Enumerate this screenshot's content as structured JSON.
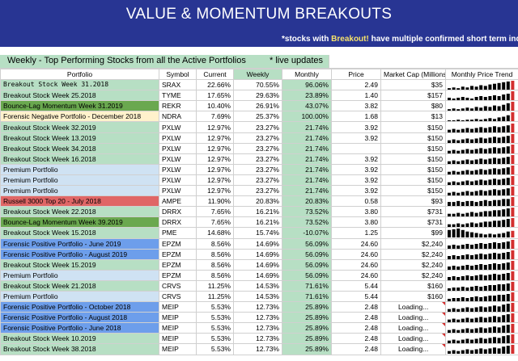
{
  "banner": {
    "title": "VALUE & MOMENTUM BREAKOUTS",
    "note_prefix": "*stocks with ",
    "note_highlight": "Breakout!",
    "note_suffix": " have multiple confirmed short term indicators fo"
  },
  "table_title": {
    "text": "Weekly - Top Performing Stocks from all the Active Portfolios",
    "live": "* live updates"
  },
  "columns": [
    "Portfolio",
    "Symbol",
    "Current",
    "Weekly",
    "Monthly",
    "Price",
    "Market Cap (Millions)",
    "Monthly Price Trend"
  ],
  "colors": {
    "banner_bg": "#283593",
    "breakout_green": "#b7dfc4",
    "bounce_green": "#6aa84f",
    "forensic_negative_yellow": "#fff2cc",
    "premium_blue": "#cfe2f3",
    "russell_red": "#e06666",
    "forensic_positive_blue": "#6d9eeb",
    "spark_black": "#000000",
    "spark_red": "#d32f2f"
  },
  "rows": [
    {
      "portfolio": "Breakout Stock Week 31.2018",
      "symbol": "SRAX",
      "current": "22.66%",
      "weekly": "70.55%",
      "monthly": "96.06%",
      "price": "2.49",
      "mcap": "$35",
      "trend": [
        2,
        3,
        2,
        4,
        3,
        5,
        4,
        6,
        5,
        7,
        8,
        9,
        10,
        11,
        12
      ],
      "style": "breakout",
      "mono": true
    },
    {
      "portfolio": "Breakout Stock Week 25.2018",
      "symbol": "TYME",
      "current": "17.65%",
      "weekly": "29.63%",
      "monthly": "23.89%",
      "price": "1.40",
      "mcap": "$157",
      "trend": [
        3,
        2,
        3,
        4,
        3,
        2,
        4,
        5,
        4,
        5,
        6,
        5,
        7,
        8,
        11
      ],
      "style": "breakout"
    },
    {
      "portfolio": "Bounce-Lag Momentum Week 31.2019",
      "symbol": "REKR",
      "current": "10.40%",
      "weekly": "26.91%",
      "monthly": "43.07%",
      "price": "3.82",
      "mcap": "$80",
      "trend": [
        2,
        3,
        2,
        3,
        4,
        3,
        5,
        4,
        6,
        5,
        7,
        6,
        8,
        10,
        12
      ],
      "style": "bounce"
    },
    {
      "portfolio": "Forensic Negative Portfolio - December 2018",
      "symbol": "NDRA",
      "current": "7.69%",
      "weekly": "25.37%",
      "monthly": "100.00%",
      "price": "1.68",
      "mcap": "$13",
      "trend": [
        1,
        1,
        2,
        1,
        2,
        2,
        3,
        2,
        3,
        4,
        3,
        5,
        6,
        8,
        12
      ],
      "style": "fneg"
    },
    {
      "portfolio": "Breakout Stock Week 32.2019",
      "symbol": "PXLW",
      "current": "12.97%",
      "weekly": "23.27%",
      "monthly": "21.74%",
      "price": "3.92",
      "mcap": "$150",
      "trend": [
        3,
        4,
        3,
        4,
        5,
        4,
        5,
        6,
        5,
        6,
        7,
        6,
        7,
        8,
        10
      ],
      "style": "breakout"
    },
    {
      "portfolio": "Breakout Stock Week 13.2019",
      "symbol": "PXLW",
      "current": "12.97%",
      "weekly": "23.27%",
      "monthly": "21.74%",
      "price": "3.92",
      "mcap": "$150",
      "trend": [
        3,
        4,
        3,
        4,
        5,
        4,
        5,
        6,
        5,
        6,
        7,
        6,
        7,
        8,
        10
      ],
      "style": "breakout"
    },
    {
      "portfolio": "Breakout Stock Week 34.2018",
      "symbol": "PXLW",
      "current": "12.97%",
      "weekly": "23.27%",
      "monthly": "21.74%",
      "price": "",
      "mcap": "$150",
      "trend": [
        3,
        4,
        3,
        4,
        5,
        4,
        5,
        6,
        5,
        6,
        7,
        6,
        7,
        8,
        10
      ],
      "style": "breakout"
    },
    {
      "portfolio": "Breakout Stock Week 16.2018",
      "symbol": "PXLW",
      "current": "12.97%",
      "weekly": "23.27%",
      "monthly": "21.74%",
      "price": "3.92",
      "mcap": "$150",
      "trend": [
        3,
        4,
        3,
        4,
        5,
        4,
        5,
        6,
        5,
        6,
        7,
        6,
        7,
        8,
        10
      ],
      "style": "breakout"
    },
    {
      "portfolio": "Premium Portfolio",
      "symbol": "PXLW",
      "current": "12.97%",
      "weekly": "23.27%",
      "monthly": "21.74%",
      "price": "3.92",
      "mcap": "$150",
      "trend": [
        3,
        4,
        3,
        4,
        5,
        4,
        5,
        6,
        5,
        6,
        7,
        6,
        7,
        8,
        10
      ],
      "style": "premium"
    },
    {
      "portfolio": "Premium Portfolio",
      "symbol": "PXLW",
      "current": "12.97%",
      "weekly": "23.27%",
      "monthly": "21.74%",
      "price": "3.92",
      "mcap": "$150",
      "trend": [
        3,
        4,
        3,
        4,
        5,
        4,
        5,
        6,
        5,
        6,
        7,
        6,
        7,
        8,
        10
      ],
      "style": "premium"
    },
    {
      "portfolio": "Premium Portfolio",
      "symbol": "PXLW",
      "current": "12.97%",
      "weekly": "23.27%",
      "monthly": "21.74%",
      "price": "3.92",
      "mcap": "$150",
      "trend": [
        3,
        4,
        3,
        4,
        5,
        4,
        5,
        6,
        5,
        6,
        7,
        6,
        7,
        8,
        10
      ],
      "style": "premium"
    },
    {
      "portfolio": "Russell 3000 Top 20 - July 2018",
      "symbol": "AMPE",
      "current": "11.90%",
      "weekly": "20.83%",
      "monthly": "20.83%",
      "price": "0.58",
      "mcap": "$93",
      "trend": [
        4,
        4,
        5,
        4,
        5,
        5,
        4,
        5,
        6,
        5,
        6,
        6,
        7,
        7,
        9
      ],
      "style": "russell"
    },
    {
      "portfolio": "Breakout Stock Week 22.2018",
      "symbol": "DRRX",
      "current": "7.65%",
      "weekly": "16.21%",
      "monthly": "73.52%",
      "price": "3.80",
      "mcap": "$731",
      "trend": [
        3,
        3,
        4,
        3,
        4,
        5,
        4,
        5,
        6,
        6,
        7,
        7,
        8,
        9,
        10
      ],
      "style": "breakout"
    },
    {
      "portfolio": "Bounce-Lag Momentum Week 39.2019",
      "symbol": "DRRX",
      "current": "7.65%",
      "weekly": "16.21%",
      "monthly": "73.52%",
      "price": "3.80",
      "mcap": "$731",
      "trend": [
        3,
        3,
        4,
        3,
        4,
        5,
        4,
        5,
        6,
        6,
        7,
        7,
        8,
        9,
        10
      ],
      "style": "bounce"
    },
    {
      "portfolio": "Breakout Stock Week 15.2018",
      "symbol": "PME",
      "current": "14.68%",
      "weekly": "15.74%",
      "monthly": "-10.07%",
      "price": "1.25",
      "mcap": "$99",
      "trend": [
        10,
        11,
        12,
        10,
        8,
        7,
        6,
        5,
        4,
        5,
        4,
        5,
        6,
        8,
        9
      ],
      "style": "breakout"
    },
    {
      "portfolio": "Forensic Positive Portfolio - June 2019",
      "symbol": "EPZM",
      "current": "8.56%",
      "weekly": "14.69%",
      "monthly": "56.09%",
      "price": "24.60",
      "mcap": "$2,240",
      "trend": [
        4,
        5,
        4,
        5,
        6,
        5,
        6,
        7,
        6,
        7,
        8,
        7,
        8,
        9,
        11
      ],
      "style": "fpos"
    },
    {
      "portfolio": "Forensic Positive Portfolio - August 2019",
      "symbol": "EPZM",
      "current": "8.56%",
      "weekly": "14.69%",
      "monthly": "56.09%",
      "price": "24.60",
      "mcap": "$2,240",
      "trend": [
        4,
        5,
        4,
        5,
        6,
        5,
        6,
        7,
        6,
        7,
        8,
        7,
        8,
        9,
        11
      ],
      "style": "fpos"
    },
    {
      "portfolio": "Breakout Stock Week 15.2019",
      "symbol": "EPZM",
      "current": "8.56%",
      "weekly": "14.69%",
      "monthly": "56.09%",
      "price": "24.60",
      "mcap": "$2,240",
      "trend": [
        4,
        5,
        4,
        5,
        6,
        5,
        6,
        7,
        6,
        7,
        8,
        7,
        8,
        9,
        11
      ],
      "style": "breakout"
    },
    {
      "portfolio": "Premium Portfolio",
      "symbol": "EPZM",
      "current": "8.56%",
      "weekly": "14.69%",
      "monthly": "56.09%",
      "price": "24.60",
      "mcap": "$2,240",
      "trend": [
        4,
        5,
        4,
        5,
        6,
        5,
        6,
        7,
        6,
        7,
        8,
        7,
        8,
        9,
        11
      ],
      "style": "premium"
    },
    {
      "portfolio": "Breakout Stock Week 21.2018",
      "symbol": "CRVS",
      "current": "11.25%",
      "weekly": "14.53%",
      "monthly": "71.61%",
      "price": "5.44",
      "mcap": "$160",
      "trend": [
        3,
        4,
        4,
        5,
        4,
        5,
        6,
        5,
        6,
        7,
        7,
        8,
        8,
        9,
        11
      ],
      "style": "breakout"
    },
    {
      "portfolio": "Premium Portfolio",
      "symbol": "CRVS",
      "current": "11.25%",
      "weekly": "14.53%",
      "monthly": "71.61%",
      "price": "5.44",
      "mcap": "$160",
      "trend": [
        3,
        4,
        4,
        5,
        4,
        5,
        6,
        5,
        6,
        7,
        7,
        8,
        8,
        9,
        11
      ],
      "style": "premium"
    },
    {
      "portfolio": "Forensic Positive Portfolio - October 2018",
      "symbol": "MEIP",
      "current": "5.53%",
      "weekly": "12.73%",
      "monthly": "25.89%",
      "price": "2.48",
      "mcap": "Loading...",
      "trend": [
        3,
        4,
        3,
        4,
        5,
        4,
        5,
        6,
        5,
        6,
        7,
        6,
        8,
        9,
        10
      ],
      "style": "fpos"
    },
    {
      "portfolio": "Forensic Positive Portfolio - August 2018",
      "symbol": "MEIP",
      "current": "5.53%",
      "weekly": "12.73%",
      "monthly": "25.89%",
      "price": "2.48",
      "mcap": "Loading...",
      "trend": [
        3,
        4,
        3,
        4,
        5,
        4,
        5,
        6,
        5,
        6,
        7,
        6,
        8,
        9,
        10
      ],
      "style": "fpos"
    },
    {
      "portfolio": "Forensic Positive Portfolio - June 2018",
      "symbol": "MEIP",
      "current": "5.53%",
      "weekly": "12.73%",
      "monthly": "25.89%",
      "price": "2.48",
      "mcap": "Loading...",
      "trend": [
        3,
        4,
        3,
        4,
        5,
        4,
        5,
        6,
        5,
        6,
        7,
        6,
        8,
        9,
        10
      ],
      "style": "fpos"
    },
    {
      "portfolio": "Breakout Stock Week 10.2019",
      "symbol": "MEIP",
      "current": "5.53%",
      "weekly": "12.73%",
      "monthly": "25.89%",
      "price": "2.48",
      "mcap": "Loading...",
      "trend": [
        3,
        4,
        3,
        4,
        5,
        4,
        5,
        6,
        5,
        6,
        7,
        6,
        8,
        9,
        10
      ],
      "style": "breakout"
    },
    {
      "portfolio": "Breakout Stock Week 38.2018",
      "symbol": "MEIP",
      "current": "5.53%",
      "weekly": "12.73%",
      "monthly": "25.89%",
      "price": "2.48",
      "mcap": "Loading...",
      "trend": [
        3,
        4,
        3,
        4,
        5,
        4,
        5,
        6,
        5,
        6,
        7,
        6,
        8,
        9,
        10
      ],
      "style": "breakout"
    }
  ]
}
